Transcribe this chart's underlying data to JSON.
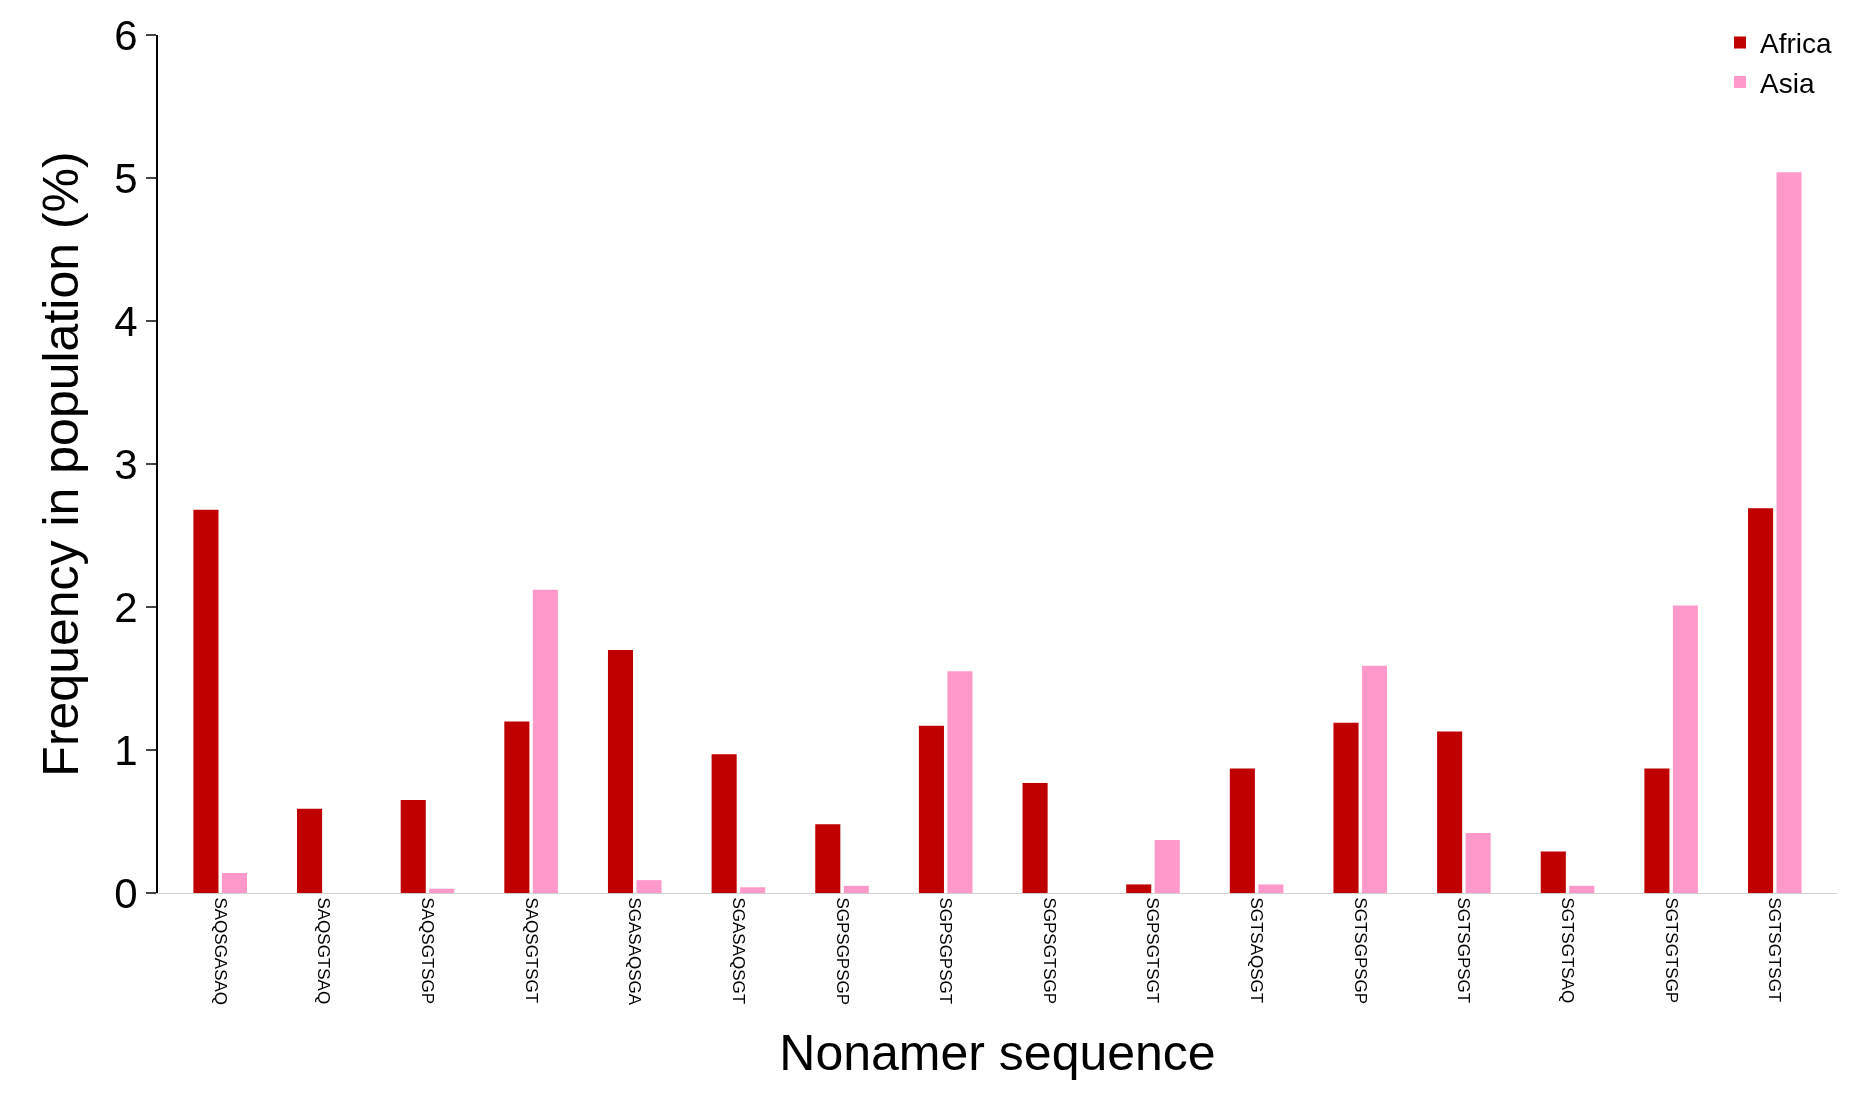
{
  "chart_data": {
    "type": "bar",
    "xlabel": "Nonamer sequence",
    "ylabel": "Frequency in population (%)",
    "categories": [
      "SAQSGASAQ",
      "SAQSGTSAQ",
      "SAQSGTSGP",
      "SAQSGTSGT",
      "SGASAQSGA",
      "SGASAQSGT",
      "SGPSGPSGP",
      "SGPSGPSGT",
      "SGPSGTSGP",
      "SGPSGTSGT",
      "SGTSAQSGT",
      "SGTSGPSGP",
      "SGTSGPSGT",
      "SGTSGTSAQ",
      "SGTSGTSGP",
      "SGTSGTSGT"
    ],
    "series": [
      {
        "name": "Africa",
        "color": "#c00000",
        "values": [
          2.68,
          0.59,
          0.65,
          1.2,
          1.7,
          0.97,
          0.48,
          1.17,
          0.77,
          0.06,
          0.87,
          1.19,
          1.13,
          0.29,
          0.87,
          2.69
        ]
      },
      {
        "name": "Asia",
        "color": "#ff99cc",
        "values": [
          0.14,
          0,
          0.03,
          2.12,
          0.09,
          0.04,
          0.05,
          1.55,
          0,
          0.37,
          0.06,
          1.59,
          0.42,
          0.05,
          2.01,
          5.04
        ]
      }
    ],
    "ylim": [
      0,
      6
    ],
    "yticks": [
      0,
      1,
      2,
      3,
      4,
      5,
      6
    ],
    "legend": "top right"
  }
}
